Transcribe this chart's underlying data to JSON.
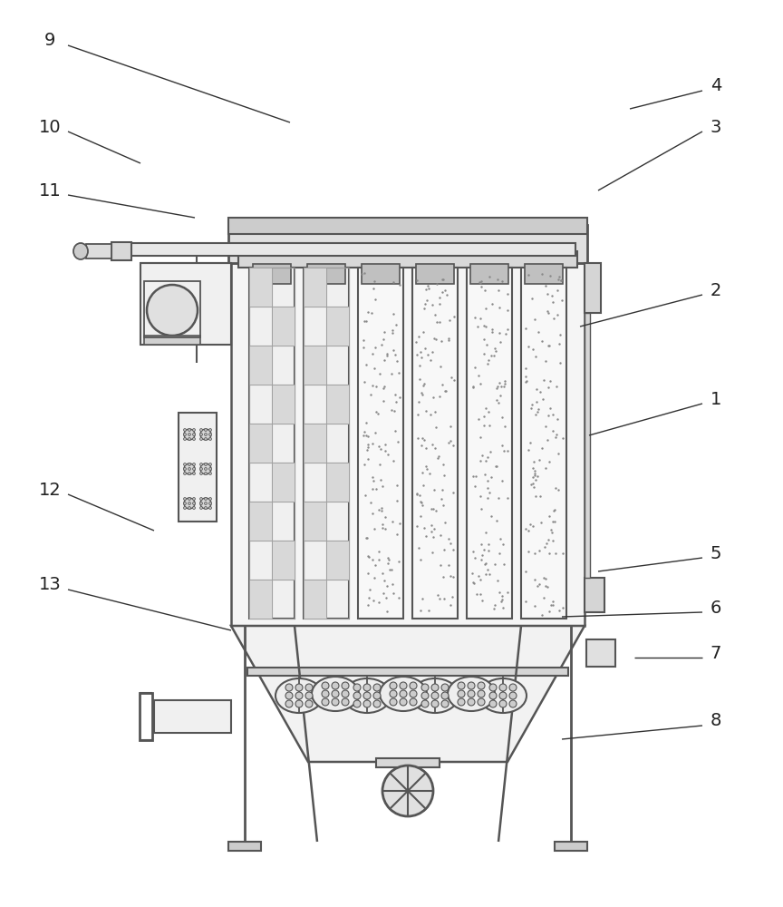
{
  "bg_color": "#ffffff",
  "lc": "#555555",
  "lw": 1.5,
  "lc2": "#444444"
}
